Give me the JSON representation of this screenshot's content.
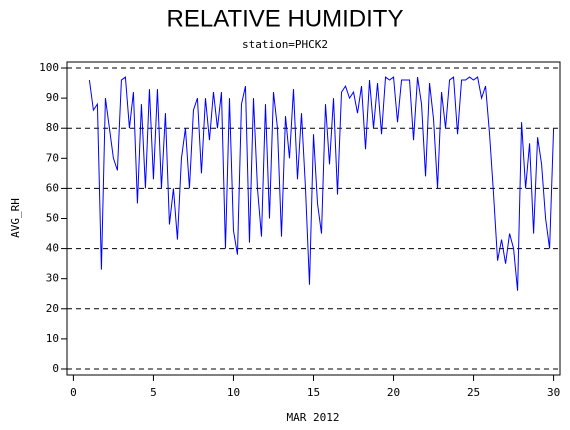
{
  "chart_data": {
    "type": "line",
    "title": "RELATIVE HUMIDITY",
    "subtitle": "station=PHCK2",
    "y_label": "AVG_RH",
    "x_label": "MAR 2012",
    "xlim": [
      -0.4,
      30.4
    ],
    "ylim": [
      -2,
      102
    ],
    "xticks": [
      0,
      5,
      10,
      15,
      20,
      25,
      30
    ],
    "yticks": [
      0,
      10,
      20,
      30,
      40,
      50,
      60,
      70,
      80,
      90,
      100
    ],
    "reference_lines": [
      0,
      20,
      40,
      60,
      80,
      100
    ],
    "x": [
      1.0,
      1.25,
      1.5,
      1.75,
      2.0,
      2.25,
      2.5,
      2.75,
      3.0,
      3.25,
      3.5,
      3.75,
      4.0,
      4.25,
      4.5,
      4.75,
      5.0,
      5.25,
      5.5,
      5.75,
      6.0,
      6.25,
      6.5,
      6.75,
      7.0,
      7.25,
      7.5,
      7.75,
      8.0,
      8.25,
      8.5,
      8.75,
      9.0,
      9.25,
      9.5,
      9.75,
      10.0,
      10.25,
      10.5,
      10.75,
      11.0,
      11.25,
      11.5,
      11.75,
      12.0,
      12.25,
      12.5,
      12.75,
      13.0,
      13.25,
      13.5,
      13.75,
      14.0,
      14.25,
      14.5,
      14.75,
      15.0,
      15.25,
      15.5,
      15.75,
      16.0,
      16.25,
      16.5,
      16.75,
      17.0,
      17.25,
      17.5,
      17.75,
      18.0,
      18.25,
      18.5,
      18.75,
      19.0,
      19.25,
      19.5,
      19.75,
      20.0,
      20.25,
      20.5,
      20.75,
      21.0,
      21.25,
      21.5,
      21.75,
      22.0,
      22.25,
      22.5,
      22.75,
      23.0,
      23.25,
      23.5,
      23.75,
      24.0,
      24.25,
      24.5,
      24.75,
      25.0,
      25.25,
      25.5,
      25.75,
      26.0,
      26.25,
      26.5,
      26.75,
      27.0,
      27.25,
      27.5,
      27.75,
      28.0,
      28.25,
      28.5,
      28.75,
      29.0,
      29.25,
      29.5,
      29.75,
      30.0
    ],
    "series": [
      {
        "name": "AVG_RH",
        "color": "#0000ff",
        "values": [
          96,
          86,
          88,
          33,
          90,
          80,
          70,
          66,
          96,
          97,
          80,
          92,
          55,
          88,
          60,
          93,
          63,
          93,
          60,
          85,
          48,
          60,
          43,
          70,
          80,
          60,
          86,
          90,
          65,
          90,
          76,
          92,
          80,
          92,
          40,
          90,
          46,
          38,
          88,
          94,
          42,
          90,
          60,
          44,
          88,
          50,
          92,
          80,
          44,
          84,
          70,
          93,
          63,
          85,
          60,
          28,
          78,
          55,
          45,
          88,
          68,
          90,
          58,
          92,
          94,
          90,
          92,
          85,
          94,
          73,
          96,
          80,
          95,
          78,
          97,
          96,
          97,
          82,
          96,
          96,
          96,
          76,
          97,
          88,
          64,
          95,
          83,
          60,
          92,
          80,
          96,
          97,
          78,
          96,
          96,
          97,
          96,
          97,
          90,
          94,
          78,
          58,
          36,
          43,
          35,
          45,
          40,
          26,
          82,
          60,
          75,
          45,
          77,
          68,
          50,
          40,
          80
        ]
      }
    ]
  }
}
